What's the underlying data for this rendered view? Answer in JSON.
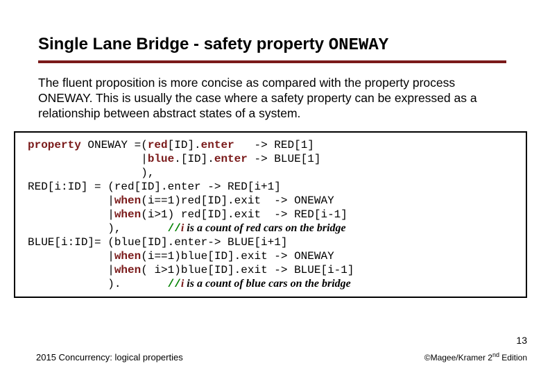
{
  "title": {
    "main": "Single Lane Bridge - safety property ",
    "code": "ONEWAY"
  },
  "paragraph": "The fluent proposition is more concise as compared with the property process ONEWAY. This is usually the case where a safety property can be expressed as a relationship between abstract states of a system.",
  "code": {
    "l1a": "property",
    "l1b": " ONEWAY =(",
    "l1c": "red",
    "l1d": "[ID].",
    "l1e": "enter",
    "l1f": "   -> RED[1]",
    "l2a": "                 |",
    "l2b": "blue",
    "l2c": ".[ID].",
    "l2d": "enter",
    "l2e": " -> BLUE[1]",
    "l3": "                 ),",
    "l4": "RED[i:ID] = (red[ID].enter -> RED[i+1]",
    "l5a": "            |",
    "l5b": "when",
    "l5c": "(i==1)red[ID].exit  -> ONEWAY",
    "l6a": "            |",
    "l6b": "when",
    "l6c": "(i>1) red[ID].exit  -> RED[i-1]",
    "l7a": "            ),       ",
    "l7b": "//",
    "l7c": "i",
    "l7d": " is a count of red cars on the bridge",
    "l8": "BLUE[i:ID]= (blue[ID].enter-> BLUE[i+1]",
    "l9a": "            |",
    "l9b": "when",
    "l9c": "(i==1)blue[ID].exit -> ONEWAY",
    "l10a": "            |",
    "l10b": "when",
    "l10c": "( i>1)blue[ID].exit -> BLUE[i-1]",
    "l11a": "            ).       ",
    "l11b": "//",
    "l11c": "i",
    "l11d": " is a count of blue cars on the bridge"
  },
  "footer": {
    "left": "2015 Concurrency: logical properties",
    "right_prefix": "©Magee/Kramer 2",
    "right_sup": "nd",
    "right_suffix": " Edition",
    "page": "13"
  },
  "colors": {
    "rule": "#7a1a1a",
    "keyword": "#7a1a1a",
    "comment_slash": "#008000",
    "text": "#000000",
    "background": "#ffffff",
    "border": "#000000"
  }
}
